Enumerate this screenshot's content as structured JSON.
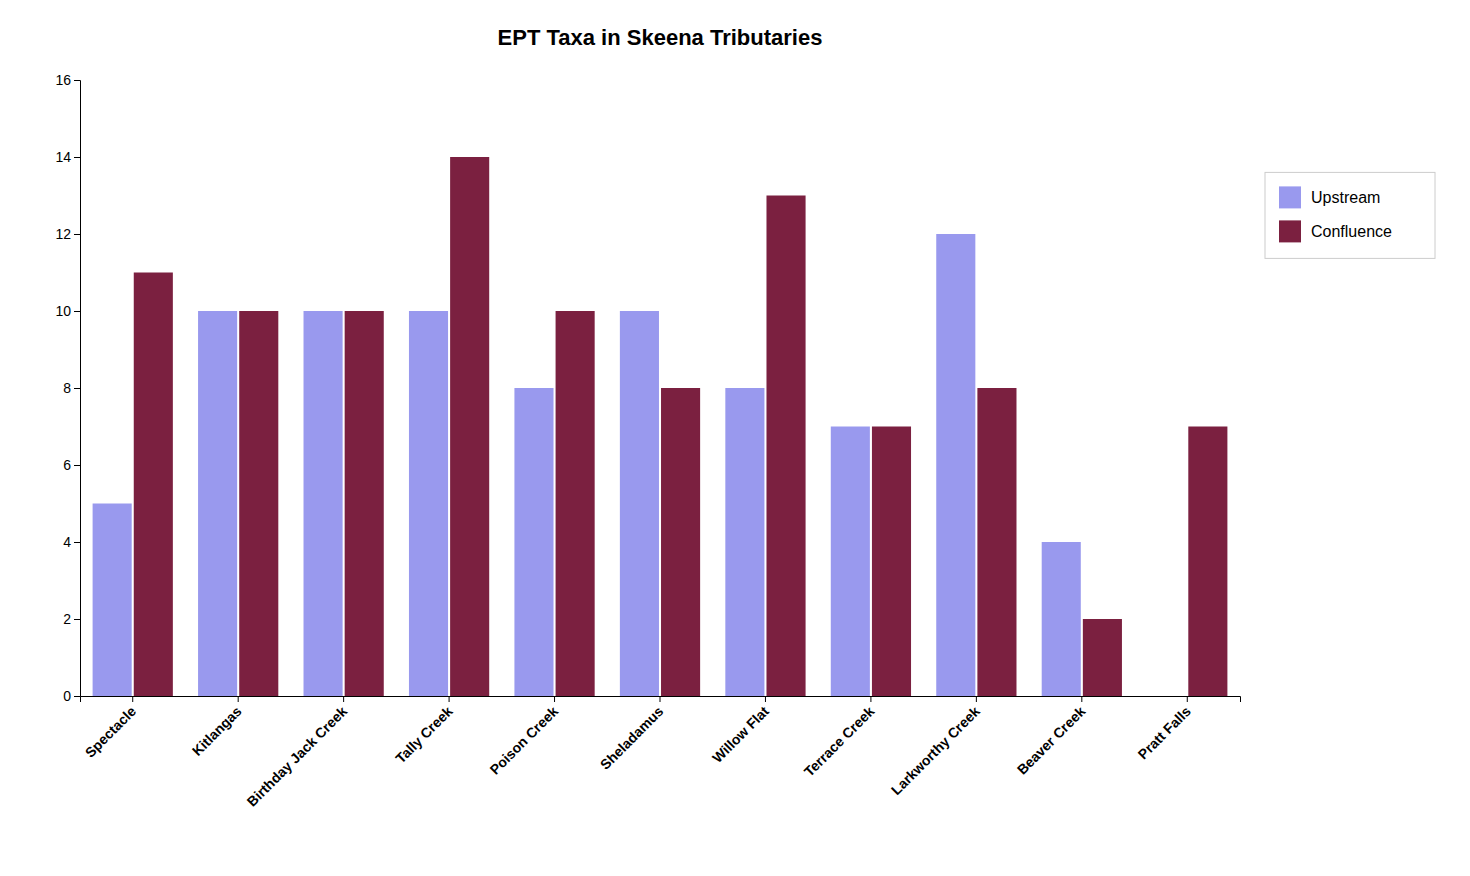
{
  "chart_data": {
    "type": "bar",
    "title": "EPT Taxa in Skeena Tributaries",
    "categories": [
      "Spectacle",
      "Kitlangas",
      "Birthday Jack Creek",
      "Tally Creek",
      "Poison Creek",
      "Sheladamus",
      "Willow Flat",
      "Terrace Creek",
      "Larkworthy Creek",
      "Beaver Creek",
      "Pratt Falls"
    ],
    "series": [
      {
        "name": "Upstream",
        "color": "#9999EE",
        "values": [
          5,
          10,
          10,
          10,
          8,
          10,
          8,
          7,
          12,
          4,
          0
        ]
      },
      {
        "name": "Confluence",
        "color": "#7B2040",
        "values": [
          11,
          10,
          10,
          14,
          10,
          8,
          13,
          7,
          8,
          2,
          7
        ]
      }
    ],
    "ylim": [
      0,
      16
    ],
    "yticks": [
      0,
      2,
      4,
      6,
      8,
      10,
      12,
      14,
      16
    ],
    "grid": false,
    "legend": "right"
  }
}
